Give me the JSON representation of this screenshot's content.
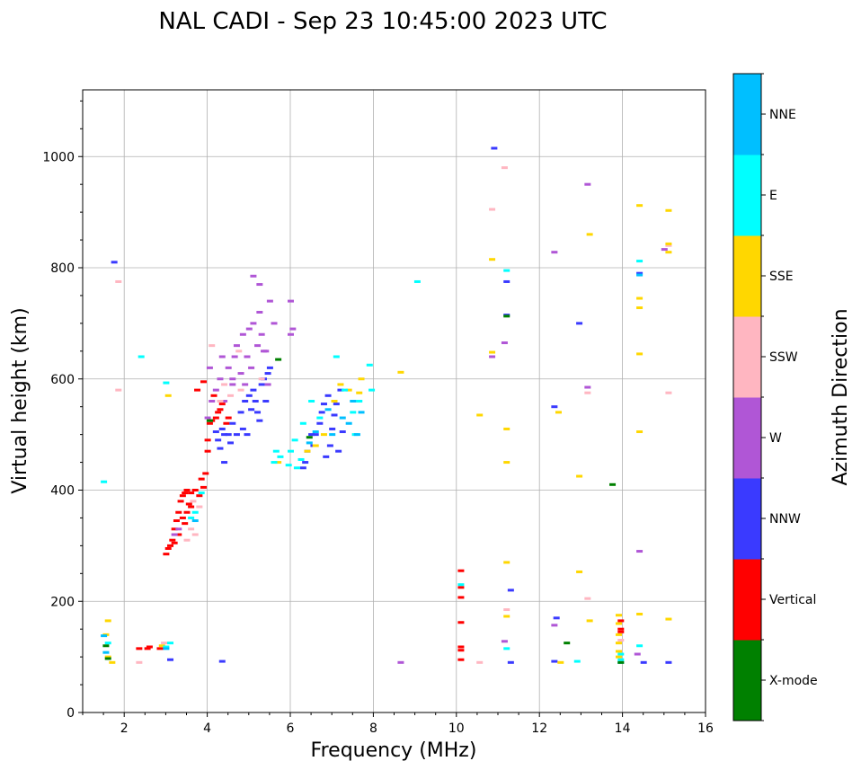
{
  "chart_data": {
    "type": "scatter",
    "title": "NAL CADI - Sep 23 10:45:00 2023 UTC",
    "xlabel": "Frequency (MHz)",
    "ylabel": "Virtual height (km)",
    "xlim": [
      1,
      16
    ],
    "ylim": [
      0,
      1120
    ],
    "xticks": [
      2,
      4,
      6,
      8,
      10,
      12,
      14,
      16
    ],
    "yticks": [
      0,
      200,
      400,
      600,
      800,
      1000
    ],
    "grid": true,
    "colorbar": {
      "label": "Azimuth Direction",
      "categories": [
        {
          "name": "X-mode",
          "color": "#008000"
        },
        {
          "name": "Vertical",
          "color": "#ff0000"
        },
        {
          "name": "NNW",
          "color": "#3a3aff"
        },
        {
          "name": "W",
          "color": "#b056d6"
        },
        {
          "name": "SSW",
          "color": "#ffb6c1"
        },
        {
          "name": "SSE",
          "color": "#ffd700"
        },
        {
          "name": "E",
          "color": "#00ffff"
        },
        {
          "name": "NNE",
          "color": "#00bfff"
        }
      ]
    },
    "series": [
      {
        "name": "Vertical",
        "points": [
          [
            3.0,
            285
          ],
          [
            3.05,
            295
          ],
          [
            3.1,
            300
          ],
          [
            3.2,
            330
          ],
          [
            3.25,
            345
          ],
          [
            3.3,
            360
          ],
          [
            3.35,
            380
          ],
          [
            3.4,
            390
          ],
          [
            3.45,
            395
          ],
          [
            3.5,
            400
          ],
          [
            3.6,
            395
          ],
          [
            3.7,
            400
          ],
          [
            3.8,
            390
          ],
          [
            3.85,
            420
          ],
          [
            3.9,
            405
          ],
          [
            3.95,
            430
          ],
          [
            4.0,
            470
          ],
          [
            4.0,
            490
          ],
          [
            4.05,
            520
          ],
          [
            4.1,
            525
          ],
          [
            4.2,
            530
          ],
          [
            4.25,
            540
          ],
          [
            4.3,
            545
          ],
          [
            4.35,
            555
          ],
          [
            4.45,
            520
          ],
          [
            4.5,
            530
          ],
          [
            3.5,
            360
          ],
          [
            3.55,
            375
          ],
          [
            3.6,
            370
          ],
          [
            3.45,
            340
          ],
          [
            3.4,
            350
          ],
          [
            3.3,
            320
          ],
          [
            3.2,
            305
          ],
          [
            3.15,
            310
          ],
          [
            2.35,
            115
          ],
          [
            2.55,
            115
          ],
          [
            2.6,
            118
          ],
          [
            2.85,
            115
          ],
          [
            3.75,
            580
          ],
          [
            3.9,
            595
          ],
          [
            4.15,
            570
          ],
          [
            10.1,
            255
          ],
          [
            10.1,
            225
          ],
          [
            10.1,
            207
          ],
          [
            10.1,
            162
          ],
          [
            10.1,
            118
          ],
          [
            10.1,
            112
          ],
          [
            10.1,
            95
          ],
          [
            13.95,
            165
          ],
          [
            13.95,
            150
          ],
          [
            13.95,
            145
          ]
        ]
      },
      {
        "name": "NNW",
        "points": [
          [
            4.2,
            505
          ],
          [
            4.25,
            490
          ],
          [
            4.3,
            475
          ],
          [
            4.35,
            510
          ],
          [
            4.4,
            500
          ],
          [
            4.5,
            500
          ],
          [
            4.55,
            485
          ],
          [
            4.6,
            520
          ],
          [
            4.7,
            500
          ],
          [
            4.8,
            540
          ],
          [
            4.85,
            510
          ],
          [
            4.9,
            560
          ],
          [
            5.0,
            570
          ],
          [
            5.05,
            545
          ],
          [
            5.1,
            580
          ],
          [
            5.15,
            560
          ],
          [
            5.2,
            540
          ],
          [
            5.3,
            590
          ],
          [
            5.35,
            600
          ],
          [
            5.4,
            560
          ],
          [
            5.45,
            610
          ],
          [
            5.5,
            620
          ],
          [
            4.4,
            450
          ],
          [
            4.95,
            500
          ],
          [
            5.25,
            525
          ],
          [
            6.3,
            440
          ],
          [
            6.4,
            470
          ],
          [
            6.55,
            480
          ],
          [
            6.6,
            500
          ],
          [
            6.7,
            520
          ],
          [
            6.75,
            540
          ],
          [
            6.8,
            555
          ],
          [
            6.9,
            570
          ],
          [
            6.95,
            480
          ],
          [
            7.0,
            510
          ],
          [
            7.05,
            535
          ],
          [
            7.1,
            555
          ],
          [
            7.2,
            580
          ],
          [
            7.25,
            505
          ],
          [
            6.5,
            500
          ],
          [
            6.85,
            460
          ],
          [
            7.15,
            470
          ],
          [
            6.35,
            450
          ],
          [
            10.9,
            1015
          ],
          [
            11.2,
            715
          ],
          [
            11.2,
            775
          ],
          [
            11.3,
            220
          ],
          [
            11.3,
            90
          ],
          [
            12.35,
            550
          ],
          [
            12.4,
            170
          ],
          [
            12.35,
            92
          ],
          [
            12.95,
            700
          ],
          [
            14.4,
            790
          ],
          [
            14.5,
            90
          ],
          [
            15.1,
            90
          ],
          [
            1.75,
            810
          ],
          [
            4.35,
            92
          ],
          [
            3.1,
            95
          ]
        ]
      },
      {
        "name": "W",
        "points": [
          [
            4.0,
            530
          ],
          [
            4.05,
            620
          ],
          [
            4.1,
            560
          ],
          [
            4.2,
            580
          ],
          [
            4.3,
            600
          ],
          [
            4.35,
            640
          ],
          [
            4.4,
            560
          ],
          [
            4.5,
            620
          ],
          [
            4.6,
            590
          ],
          [
            4.65,
            640
          ],
          [
            4.7,
            660
          ],
          [
            4.8,
            610
          ],
          [
            4.85,
            680
          ],
          [
            4.95,
            640
          ],
          [
            5.0,
            690
          ],
          [
            5.05,
            620
          ],
          [
            5.1,
            700
          ],
          [
            5.2,
            660
          ],
          [
            5.25,
            720
          ],
          [
            5.3,
            680
          ],
          [
            5.4,
            650
          ],
          [
            5.5,
            740
          ],
          [
            5.6,
            700
          ],
          [
            5.1,
            785
          ],
          [
            5.25,
            770
          ],
          [
            4.6,
            600
          ],
          [
            4.9,
            590
          ],
          [
            5.35,
            650
          ],
          [
            5.45,
            590
          ],
          [
            6.0,
            740
          ],
          [
            6.05,
            690
          ],
          [
            6.0,
            680
          ],
          [
            3.2,
            320
          ],
          [
            3.3,
            330
          ],
          [
            10.85,
            640
          ],
          [
            11.15,
            665
          ],
          [
            11.15,
            128
          ],
          [
            12.35,
            157
          ],
          [
            13.15,
            950
          ],
          [
            13.15,
            585
          ],
          [
            12.35,
            828
          ],
          [
            14.35,
            105
          ],
          [
            14.4,
            290
          ],
          [
            15.0,
            833
          ],
          [
            8.65,
            90
          ]
        ]
      },
      {
        "name": "SSW",
        "points": [
          [
            4.1,
            660
          ],
          [
            4.3,
            560
          ],
          [
            4.4,
            590
          ],
          [
            4.55,
            570
          ],
          [
            4.75,
            650
          ],
          [
            4.8,
            580
          ],
          [
            5.3,
            600
          ],
          [
            3.6,
            330
          ],
          [
            3.7,
            320
          ],
          [
            3.5,
            310
          ],
          [
            3.65,
            380
          ],
          [
            3.8,
            370
          ],
          [
            2.95,
            125
          ],
          [
            10.85,
            905
          ],
          [
            11.15,
            980
          ],
          [
            13.15,
            575
          ],
          [
            13.15,
            205
          ],
          [
            15.1,
            575
          ],
          [
            15.1,
            840
          ],
          [
            10.55,
            90
          ],
          [
            1.85,
            775
          ],
          [
            1.85,
            580
          ],
          [
            2.35,
            90
          ],
          [
            11.2,
            185
          ],
          [
            13.95,
            130
          ]
        ]
      },
      {
        "name": "SSE",
        "points": [
          [
            1.6,
            165
          ],
          [
            1.55,
            140
          ],
          [
            1.6,
            100
          ],
          [
            1.7,
            90
          ],
          [
            2.9,
            120
          ],
          [
            3.05,
            570
          ],
          [
            5.7,
            450
          ],
          [
            6.4,
            470
          ],
          [
            6.6,
            480
          ],
          [
            6.8,
            500
          ],
          [
            7.05,
            560
          ],
          [
            7.2,
            590
          ],
          [
            7.4,
            580
          ],
          [
            7.65,
            575
          ],
          [
            7.7,
            600
          ],
          [
            8.65,
            612
          ],
          [
            10.55,
            535
          ],
          [
            10.85,
            815
          ],
          [
            10.85,
            648
          ],
          [
            11.2,
            510
          ],
          [
            11.2,
            450
          ],
          [
            11.2,
            270
          ],
          [
            11.2,
            173
          ],
          [
            12.45,
            540
          ],
          [
            12.5,
            90
          ],
          [
            12.95,
            425
          ],
          [
            12.95,
            253
          ],
          [
            13.2,
            860
          ],
          [
            13.2,
            165
          ],
          [
            13.9,
            175
          ],
          [
            13.9,
            160
          ],
          [
            13.9,
            140
          ],
          [
            13.9,
            125
          ],
          [
            13.9,
            110
          ],
          [
            13.9,
            100
          ],
          [
            14.4,
            912
          ],
          [
            14.4,
            745
          ],
          [
            14.4,
            728
          ],
          [
            14.4,
            645
          ],
          [
            14.4,
            505
          ],
          [
            14.4,
            177
          ],
          [
            15.1,
            903
          ],
          [
            15.1,
            843
          ],
          [
            15.1,
            828
          ],
          [
            15.1,
            168
          ]
        ]
      },
      {
        "name": "E",
        "points": [
          [
            1.5,
            415
          ],
          [
            1.6,
            125
          ],
          [
            2.4,
            640
          ],
          [
            3.0,
            593
          ],
          [
            3.0,
            118
          ],
          [
            3.1,
            125
          ],
          [
            3.6,
            350
          ],
          [
            3.7,
            360
          ],
          [
            3.85,
            395
          ],
          [
            5.6,
            450
          ],
          [
            5.65,
            470
          ],
          [
            5.75,
            460
          ],
          [
            5.95,
            445
          ],
          [
            6.0,
            470
          ],
          [
            6.1,
            490
          ],
          [
            6.3,
            520
          ],
          [
            6.5,
            560
          ],
          [
            6.7,
            530
          ],
          [
            7.1,
            640
          ],
          [
            7.3,
            580
          ],
          [
            7.5,
            540
          ],
          [
            7.55,
            500
          ],
          [
            7.65,
            560
          ],
          [
            7.9,
            625
          ],
          [
            7.95,
            580
          ],
          [
            9.05,
            775
          ],
          [
            10.1,
            230
          ],
          [
            11.2,
            795
          ],
          [
            11.2,
            115
          ],
          [
            12.9,
            92
          ],
          [
            14.4,
            812
          ],
          [
            14.4,
            120
          ],
          [
            13.95,
            95
          ],
          [
            13.95,
            105
          ],
          [
            6.25,
            455
          ],
          [
            6.15,
            440
          ]
        ]
      },
      {
        "name": "NNE",
        "points": [
          [
            1.5,
            138
          ],
          [
            1.55,
            108
          ],
          [
            3.0,
            115
          ],
          [
            3.7,
            345
          ],
          [
            6.45,
            485
          ],
          [
            6.6,
            505
          ],
          [
            6.9,
            545
          ],
          [
            7.0,
            500
          ],
          [
            7.25,
            530
          ],
          [
            7.4,
            520
          ],
          [
            7.5,
            560
          ],
          [
            7.6,
            500
          ],
          [
            7.7,
            540
          ],
          [
            13.95,
            90
          ],
          [
            14.4,
            787
          ]
        ]
      },
      {
        "name": "X-mode",
        "points": [
          [
            1.55,
            120
          ],
          [
            1.6,
            97
          ],
          [
            4.05,
            525
          ],
          [
            5.7,
            635
          ],
          [
            6.45,
            495
          ],
          [
            11.2,
            713
          ],
          [
            12.65,
            125
          ],
          [
            13.75,
            410
          ],
          [
            13.95,
            90
          ]
        ]
      }
    ]
  }
}
